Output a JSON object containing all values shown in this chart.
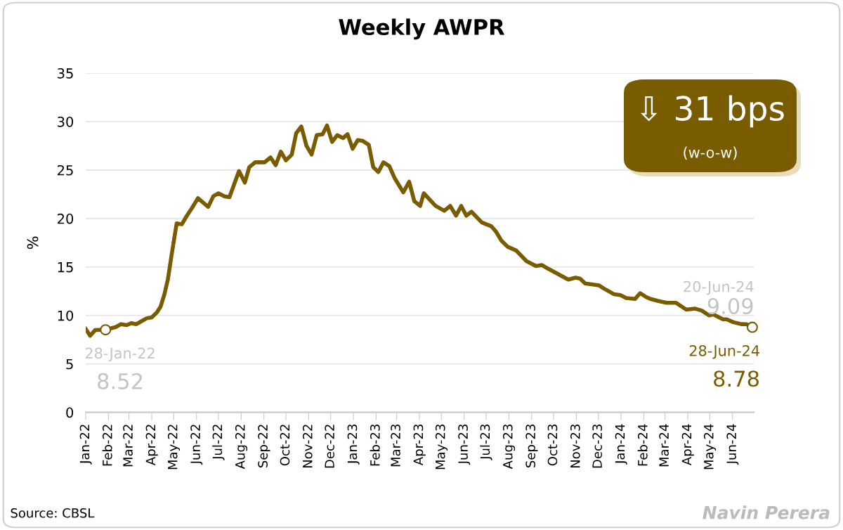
{
  "chart_data": {
    "type": "line",
    "title": "Weekly AWPR",
    "ylabel": "%",
    "x": [
      "2022-01-01",
      "2022-01-07",
      "2022-01-14",
      "2022-01-28",
      "2022-02-11",
      "2022-02-18",
      "2022-02-26",
      "2022-03-04",
      "2022-03-11",
      "2022-03-18",
      "2022-03-25",
      "2022-04-01",
      "2022-04-08",
      "2022-04-13",
      "2022-04-18",
      "2022-04-23",
      "2022-04-28",
      "2022-05-05",
      "2022-05-12",
      "2022-05-19",
      "2022-05-26",
      "2022-06-03",
      "2022-06-17",
      "2022-06-24",
      "2022-07-01",
      "2022-07-09",
      "2022-07-16",
      "2022-07-29",
      "2022-08-06",
      "2022-08-12",
      "2022-08-20",
      "2022-09-02",
      "2022-09-10",
      "2022-09-17",
      "2022-09-24",
      "2022-10-01",
      "2022-10-09",
      "2022-10-15",
      "2022-10-22",
      "2022-10-29",
      "2022-11-05",
      "2022-11-12",
      "2022-11-20",
      "2022-11-26",
      "2022-12-03",
      "2022-12-10",
      "2022-12-18",
      "2022-12-24",
      "2022-12-31",
      "2023-01-07",
      "2023-01-14",
      "2023-01-22",
      "2023-01-28",
      "2023-02-04",
      "2023-02-11",
      "2023-02-19",
      "2023-02-26",
      "2023-03-10",
      "2023-03-18",
      "2023-03-25",
      "2023-04-02",
      "2023-04-07",
      "2023-04-23",
      "2023-05-05",
      "2023-05-13",
      "2023-05-21",
      "2023-05-28",
      "2023-06-04",
      "2023-06-11",
      "2023-06-25",
      "2023-07-08",
      "2023-07-14",
      "2023-07-22",
      "2023-07-30",
      "2023-08-11",
      "2023-08-25",
      "2023-09-07",
      "2023-09-15",
      "2023-09-24",
      "2023-10-21",
      "2023-10-31",
      "2023-11-06",
      "2023-11-13",
      "2023-12-02",
      "2023-12-08",
      "2023-12-22",
      "2023-12-31",
      "2024-01-08",
      "2024-01-20",
      "2024-01-27",
      "2024-02-04",
      "2024-02-10",
      "2024-02-20",
      "2024-03-03",
      "2024-03-16",
      "2024-03-30",
      "2024-04-11",
      "2024-04-20",
      "2024-04-30",
      "2024-05-06",
      "2024-05-19",
      "2024-05-24",
      "2024-06-02",
      "2024-06-13",
      "2024-06-20",
      "2024-06-28"
    ],
    "series": [
      {
        "color": "#7a5c00",
        "values": [
          8.6,
          7.9,
          8.5,
          8.52,
          8.8,
          9.1,
          9.0,
          9.2,
          9.1,
          9.4,
          9.7,
          9.8,
          10.3,
          10.9,
          12.1,
          13.7,
          16.2,
          19.5,
          19.4,
          20.3,
          21.1,
          22.1,
          21.2,
          22.3,
          22.6,
          22.3,
          22.2,
          24.9,
          23.7,
          25.3,
          25.8,
          25.8,
          26.3,
          25.5,
          26.9,
          26.0,
          26.6,
          28.8,
          29.5,
          27.5,
          26.6,
          28.6,
          28.7,
          29.6,
          27.9,
          28.6,
          28.3,
          28.7,
          27.2,
          28.1,
          28.0,
          27.6,
          25.3,
          24.8,
          25.8,
          25.4,
          24.2,
          22.7,
          23.8,
          21.8,
          21.3,
          22.6,
          21.3,
          20.8,
          21.3,
          20.3,
          21.3,
          20.3,
          20.7,
          19.6,
          19.2,
          18.7,
          17.7,
          17.1,
          16.7,
          15.6,
          15.1,
          15.2,
          14.8,
          13.7,
          13.9,
          13.8,
          13.3,
          13.1,
          12.8,
          12.2,
          12.1,
          11.8,
          11.7,
          12.3,
          11.9,
          11.7,
          11.5,
          11.3,
          11.3,
          10.6,
          10.7,
          10.5,
          10.0,
          10.1,
          9.6,
          9.6,
          9.3,
          9.1,
          9.09,
          8.78
        ]
      }
    ],
    "xlim": [
      "2022-01-01",
      "2024-06-30"
    ],
    "xticks": [
      {
        "value": "2022-01-01",
        "label": "Jan-22"
      },
      {
        "value": "2022-02-01",
        "label": "Feb-22"
      },
      {
        "value": "2022-03-01",
        "label": "Mar-22"
      },
      {
        "value": "2022-04-01",
        "label": "Apr-22"
      },
      {
        "value": "2022-05-01",
        "label": "May-22"
      },
      {
        "value": "2022-06-01",
        "label": "Jun-22"
      },
      {
        "value": "2022-07-01",
        "label": "Jul-22"
      },
      {
        "value": "2022-08-01",
        "label": "Aug-22"
      },
      {
        "value": "2022-09-01",
        "label": "Sep-22"
      },
      {
        "value": "2022-10-01",
        "label": "Oct-22"
      },
      {
        "value": "2022-11-01",
        "label": "Nov-22"
      },
      {
        "value": "2022-12-01",
        "label": "Dec-22"
      },
      {
        "value": "2023-01-01",
        "label": "Jan-23"
      },
      {
        "value": "2023-02-01",
        "label": "Feb-23"
      },
      {
        "value": "2023-03-01",
        "label": "Mar-23"
      },
      {
        "value": "2023-04-01",
        "label": "Apr-23"
      },
      {
        "value": "2023-05-01",
        "label": "May-23"
      },
      {
        "value": "2023-06-01",
        "label": "Jun-23"
      },
      {
        "value": "2023-07-01",
        "label": "Jul-23"
      },
      {
        "value": "2023-08-01",
        "label": "Aug-23"
      },
      {
        "value": "2023-09-01",
        "label": "Sep-23"
      },
      {
        "value": "2023-10-01",
        "label": "Oct-23"
      },
      {
        "value": "2023-11-01",
        "label": "Nov-23"
      },
      {
        "value": "2023-12-01",
        "label": "Dec-23"
      },
      {
        "value": "2024-01-01",
        "label": "Jan-24"
      },
      {
        "value": "2024-02-01",
        "label": "Feb-24"
      },
      {
        "value": "2024-03-01",
        "label": "Mar-24"
      },
      {
        "value": "2024-04-01",
        "label": "Apr-24"
      },
      {
        "value": "2024-05-01",
        "label": "May-24"
      },
      {
        "value": "2024-06-01",
        "label": "Jun-24"
      }
    ],
    "ylim": [
      0,
      35
    ],
    "yticks": [
      0,
      5,
      10,
      15,
      20,
      25,
      30,
      35
    ],
    "grid": "y",
    "legend": false,
    "marker": "none",
    "line_style": "solid",
    "annotations": [
      {
        "text": "28-Jan-22",
        "x": "2022-01-28",
        "y": 8.52
      },
      {
        "text": "8.52",
        "x": "2022-01-28",
        "y": 8.52
      },
      {
        "text": "20-Jun-24",
        "x": "2024-06-20",
        "y": 9.09
      },
      {
        "text": "9.09",
        "x": "2024-06-20",
        "y": 9.09
      },
      {
        "text": "28-Jun-24",
        "x": "2024-06-28",
        "y": 8.78
      },
      {
        "text": "8.78",
        "x": "2024-06-28",
        "y": 8.78
      },
      "⇩ 31 bps\n(w-o-w)",
      "Source: CBSL",
      "Navin Perera"
    ]
  }
}
